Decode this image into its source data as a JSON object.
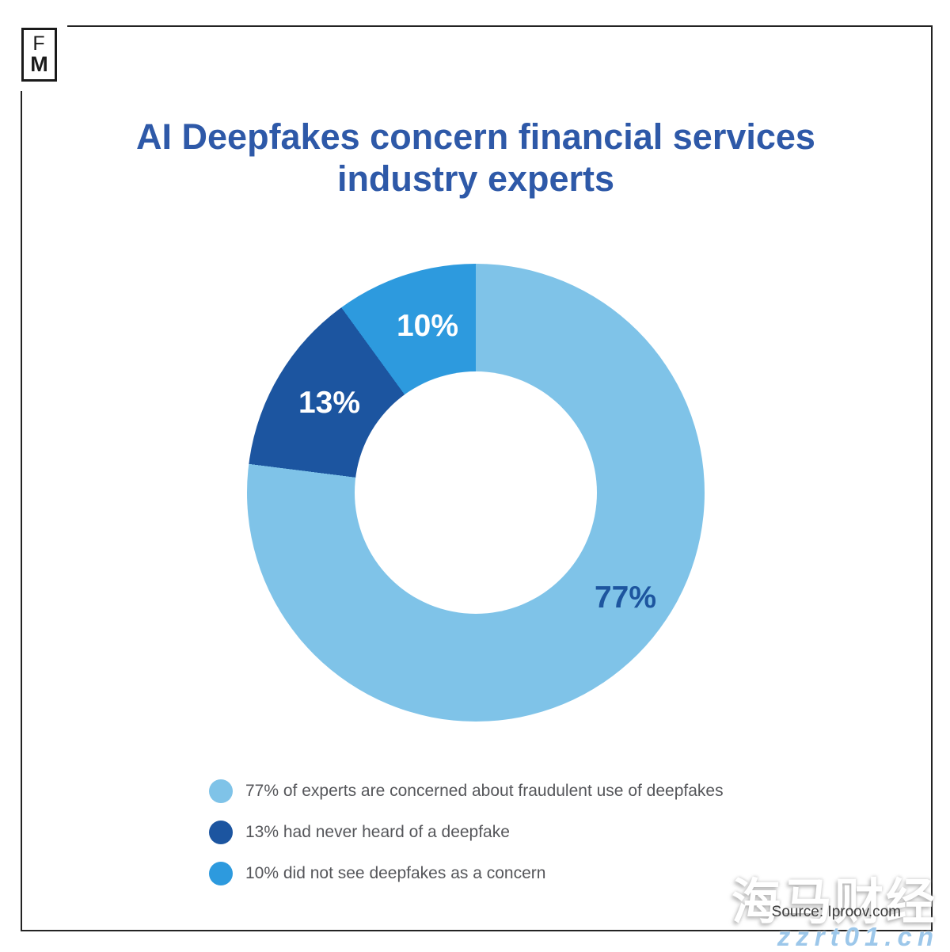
{
  "logo": {
    "letter1": "F",
    "letter2": "M"
  },
  "title": {
    "line1": "AI Deepfakes concern financial services",
    "line2": "industry experts",
    "color": "#2e59a8"
  },
  "chart_data": {
    "type": "pie",
    "subtype": "donut",
    "title": "AI Deepfakes concern financial services industry experts",
    "start_angle_deg": 0,
    "direction": "clockwise",
    "inner_radius_ratio": 0.53,
    "segments": [
      {
        "label": "77% of experts are concerned about fraudulent use of deepfakes",
        "value": 77,
        "color": "#7fc3e8",
        "slice_label": "77%",
        "slice_label_color": "#1d559f"
      },
      {
        "label": "13% had never heard of a deepfake",
        "value": 13,
        "color": "#1c55a0",
        "slice_label": "13%",
        "slice_label_color": "#ffffff"
      },
      {
        "label": "10% did not see deepfakes as a concern",
        "value": 10,
        "color": "#2d9ade",
        "slice_label": "10%",
        "slice_label_color": "#ffffff"
      }
    ],
    "legend_position": "bottom-left"
  },
  "source": {
    "text": "Source: Iproov.com"
  },
  "watermark": {
    "cn_text": "海马财经",
    "url_text": "zzrt01.cn",
    "url_color": "#9cc7ea"
  }
}
